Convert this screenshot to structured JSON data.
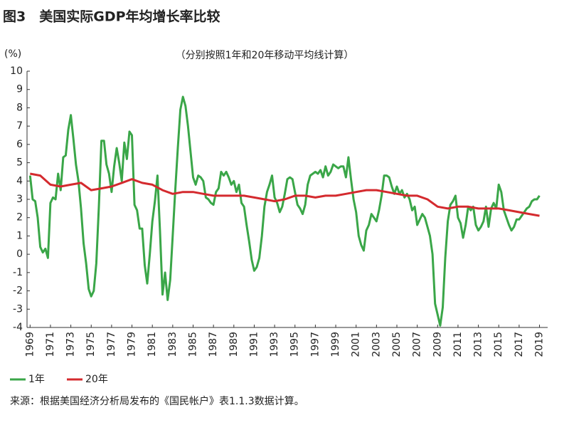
{
  "chart_data": {
    "type": "line",
    "title": "图3　美国实际GDP年均增长率比较",
    "subtitle": "（分别按照1年和20年移动平均线计算）",
    "y_label": "(%)",
    "source": "来源：根据美国经济分析局发布的《国民帐户》表1.1.3数据计算。",
    "xlim": [
      1968.7,
      2019.8
    ],
    "xticks": [
      1969,
      1971,
      1973,
      1975,
      1977,
      1979,
      1981,
      1983,
      1985,
      1987,
      1989,
      1991,
      1993,
      1995,
      1997,
      1999,
      2001,
      2003,
      2005,
      2007,
      2009,
      2011,
      2013,
      2015,
      2017,
      2019
    ],
    "ylim": [
      -4,
      10
    ],
    "yticks": [
      -4,
      -3,
      -2,
      -1,
      0,
      1,
      2,
      3,
      4,
      5,
      6,
      7,
      8,
      9,
      10
    ],
    "series": [
      {
        "name": "1年",
        "color": "#3aa648",
        "x": [
          1969,
          1969.25,
          1969.5,
          1969.75,
          1970,
          1970.25,
          1970.5,
          1970.75,
          1971,
          1971.25,
          1971.5,
          1971.75,
          1972,
          1972.25,
          1972.5,
          1972.75,
          1973,
          1973.25,
          1973.5,
          1973.75,
          1974,
          1974.25,
          1974.5,
          1974.75,
          1975,
          1975.25,
          1975.5,
          1975.75,
          1976,
          1976.25,
          1976.5,
          1976.75,
          1977,
          1977.25,
          1977.5,
          1977.75,
          1978,
          1978.25,
          1978.5,
          1978.75,
          1979,
          1979.25,
          1979.5,
          1979.75,
          1980,
          1980.25,
          1980.5,
          1980.75,
          1981,
          1981.25,
          1981.5,
          1981.75,
          1982,
          1982.25,
          1982.5,
          1982.75,
          1983,
          1983.25,
          1983.5,
          1983.75,
          1984,
          1984.25,
          1984.5,
          1984.75,
          1985,
          1985.25,
          1985.5,
          1985.75,
          1986,
          1986.25,
          1986.5,
          1986.75,
          1987,
          1987.25,
          1987.5,
          1987.75,
          1988,
          1988.25,
          1988.5,
          1988.75,
          1989,
          1989.25,
          1989.5,
          1989.75,
          1990,
          1990.25,
          1990.5,
          1990.75,
          1991,
          1991.25,
          1991.5,
          1991.75,
          1992,
          1992.25,
          1992.5,
          1992.75,
          1993,
          1993.25,
          1993.5,
          1993.75,
          1994,
          1994.25,
          1994.5,
          1994.75,
          1995,
          1995.25,
          1995.5,
          1995.75,
          1996,
          1996.25,
          1996.5,
          1996.75,
          1997,
          1997.25,
          1997.5,
          1997.75,
          1998,
          1998.25,
          1998.5,
          1998.75,
          1999,
          1999.25,
          1999.5,
          1999.75,
          2000,
          2000.25,
          2000.5,
          2000.75,
          2001,
          2001.25,
          2001.5,
          2001.75,
          2002,
          2002.25,
          2002.5,
          2002.75,
          2003,
          2003.25,
          2003.5,
          2003.75,
          2004,
          2004.25,
          2004.5,
          2004.75,
          2005,
          2005.25,
          2005.5,
          2005.75,
          2006,
          2006.25,
          2006.5,
          2006.75,
          2007,
          2007.25,
          2007.5,
          2007.75,
          2008,
          2008.25,
          2008.5,
          2008.75,
          2009,
          2009.25,
          2009.5,
          2009.75,
          2010,
          2010.25,
          2010.5,
          2010.75,
          2011,
          2011.25,
          2011.5,
          2011.75,
          2012,
          2012.25,
          2012.5,
          2012.75,
          2013,
          2013.25,
          2013.5,
          2013.75,
          2014,
          2014.25,
          2014.5,
          2014.75,
          2015,
          2015.25,
          2015.5,
          2015.75,
          2016,
          2016.25,
          2016.5,
          2016.75,
          2017,
          2017.25,
          2017.5,
          2017.75,
          2018,
          2018.25,
          2018.5,
          2018.75,
          2019
        ],
        "values": [
          4.3,
          3.0,
          2.9,
          2.0,
          0.4,
          0.1,
          0.3,
          -0.2,
          2.8,
          3.1,
          3.0,
          4.4,
          3.5,
          5.3,
          5.4,
          6.8,
          7.6,
          6.3,
          4.9,
          4.0,
          2.5,
          0.6,
          -0.5,
          -1.9,
          -2.3,
          -2.0,
          -0.5,
          2.6,
          6.2,
          6.2,
          4.9,
          4.4,
          3.4,
          4.8,
          5.8,
          5.0,
          4.0,
          6.1,
          5.2,
          6.7,
          6.5,
          2.7,
          2.4,
          1.4,
          1.4,
          -0.6,
          -1.6,
          0.0,
          1.8,
          2.9,
          4.3,
          1.3,
          -2.2,
          -1.0,
          -2.5,
          -1.4,
          1.0,
          3.5,
          5.8,
          7.9,
          8.6,
          8.1,
          7.0,
          5.6,
          4.2,
          3.8,
          4.3,
          4.2,
          4.0,
          3.1,
          3.0,
          2.8,
          2.7,
          3.4,
          3.6,
          4.5,
          4.3,
          4.5,
          4.2,
          3.8,
          4.0,
          3.4,
          3.8,
          2.8,
          2.6,
          1.6,
          0.7,
          -0.3,
          -0.9,
          -0.7,
          -0.2,
          1.0,
          2.6,
          3.4,
          3.8,
          4.3,
          3.1,
          2.8,
          2.3,
          2.6,
          3.3,
          4.1,
          4.2,
          4.1,
          3.4,
          2.7,
          2.5,
          2.2,
          2.7,
          3.8,
          4.3,
          4.4,
          4.5,
          4.4,
          4.6,
          4.2,
          4.8,
          4.3,
          4.5,
          4.9,
          4.8,
          4.7,
          4.8,
          4.8,
          4.2,
          5.3,
          4.1,
          3.0,
          2.3,
          1.0,
          0.5,
          0.2,
          1.3,
          1.6,
          2.2,
          2.0,
          1.8,
          2.4,
          3.2,
          4.3,
          4.3,
          4.2,
          3.7,
          3.3,
          3.7,
          3.3,
          3.5,
          3.1,
          3.3,
          3.0,
          2.4,
          2.6,
          1.6,
          1.9,
          2.2,
          2.0,
          1.5,
          1.0,
          0.0,
          -2.7,
          -3.3,
          -3.9,
          -2.9,
          -0.2,
          1.8,
          2.7,
          2.9,
          3.2,
          2.0,
          1.7,
          0.9,
          1.6,
          2.6,
          2.4,
          2.6,
          1.6,
          1.3,
          1.5,
          1.8,
          2.6,
          1.5,
          2.5,
          2.8,
          2.5,
          3.8,
          3.4,
          2.4,
          2.0,
          1.6,
          1.3,
          1.5,
          1.9,
          1.9,
          2.1,
          2.3,
          2.5,
          2.6,
          2.9,
          3.0,
          3.0,
          3.2
        ]
      },
      {
        "name": "20年",
        "color": "#d42a2e",
        "x": [
          1969,
          1970,
          1971,
          1972,
          1973,
          1974,
          1975,
          1976,
          1977,
          1978,
          1979,
          1980,
          1981,
          1982,
          1983,
          1984,
          1985,
          1986,
          1987,
          1988,
          1989,
          1990,
          1991,
          1992,
          1993,
          1994,
          1995,
          1996,
          1997,
          1998,
          1999,
          2000,
          2001,
          2002,
          2003,
          2004,
          2005,
          2006,
          2007,
          2008,
          2009,
          2010,
          2011,
          2012,
          2013,
          2014,
          2015,
          2016,
          2017,
          2018,
          2019
        ],
        "values": [
          4.4,
          4.3,
          3.8,
          3.7,
          3.8,
          3.9,
          3.5,
          3.6,
          3.7,
          3.9,
          4.1,
          3.9,
          3.8,
          3.5,
          3.3,
          3.4,
          3.4,
          3.3,
          3.2,
          3.2,
          3.2,
          3.2,
          3.1,
          3.0,
          2.9,
          3.0,
          3.2,
          3.2,
          3.1,
          3.2,
          3.2,
          3.3,
          3.4,
          3.5,
          3.5,
          3.4,
          3.3,
          3.2,
          3.2,
          3.0,
          2.6,
          2.5,
          2.6,
          2.6,
          2.5,
          2.5,
          2.5,
          2.4,
          2.3,
          2.2,
          2.1
        ]
      }
    ]
  }
}
